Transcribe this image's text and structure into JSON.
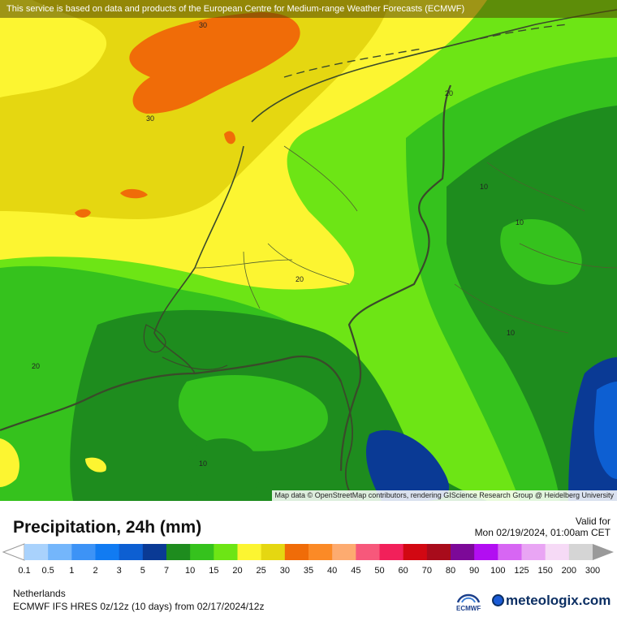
{
  "banner": "This service is based on data and products of the European Centre for Medium-range Weather Forecasts (ECMWF)",
  "attribution": "Map data © OpenStreetMap contributors, rendering GIScience Research Group @ Heidelberg University",
  "title": "Precipitation, 24h (mm)",
  "valid_label": "Valid for",
  "valid_date": "Mon 02/19/2024, 01:00am CET",
  "region": "Netherlands",
  "model": "ECMWF IFS HRES 0z/12z (10 days) from 02/17/2024/12z",
  "ecmwf_logo_text": "ECMWF",
  "meteologix_logo": "meteologix.com",
  "contour_labels": [
    "30",
    "30",
    "20",
    "20",
    "20",
    "10",
    "10",
    "10",
    "10"
  ],
  "legend": {
    "ticks": [
      "0.1",
      "0.5",
      "1",
      "2",
      "3",
      "5",
      "7",
      "10",
      "15",
      "20",
      "25",
      "30",
      "35",
      "40",
      "45",
      "50",
      "60",
      "70",
      "80",
      "90",
      "100",
      "125",
      "150",
      "200",
      "300"
    ],
    "colors": [
      "#a9d2fc",
      "#74b6fb",
      "#3d93f6",
      "#117bf2",
      "#0d5fd2",
      "#0a3a95",
      "#1e8c1e",
      "#35c21d",
      "#6de515",
      "#fcf531",
      "#e5d711",
      "#f06c08",
      "#fb8a26",
      "#fdab70",
      "#f7587b",
      "#f2205a",
      "#d20812",
      "#a80b1b",
      "#7c0998",
      "#b20ef2",
      "#d766f3",
      "#e9a5f4",
      "#f6daf6",
      "#d5d5d5"
    ],
    "under_color": "#ffffff",
    "over_color": "#9a9a9a"
  },
  "map_colors": {
    "c7": "#1e8c1e",
    "c10": "#35c21d",
    "c15": "#6de515",
    "c20": "#fcf531",
    "c25": "#e5d711",
    "c30": "#f06c08",
    "c3": "#0d5fd2",
    "c5": "#0a3a95"
  }
}
